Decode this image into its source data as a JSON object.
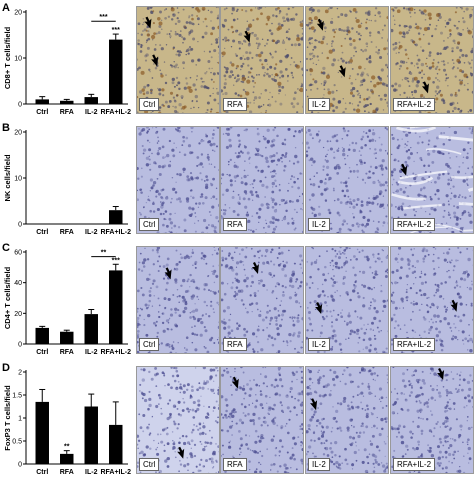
{
  "panels": [
    {
      "letter": "A",
      "ylabel": "CD8+ T cells/field",
      "chart": {
        "type": "bar",
        "categories": [
          "Ctrl",
          "RFA",
          "IL-2",
          "RFA+IL-2"
        ],
        "values": [
          1.0,
          0.7,
          1.5,
          14.0
        ],
        "errors": [
          0.6,
          0.3,
          0.6,
          1.2
        ],
        "ylim": [
          0,
          20
        ],
        "yticks": [
          0,
          10,
          20
        ],
        "annotations": [
          {
            "text": "***",
            "type": "bracket",
            "from": 2,
            "to": 3,
            "y": 18
          },
          {
            "text": "***",
            "type": "above",
            "index": 3
          }
        ]
      },
      "images": [
        {
          "label": "Ctrl",
          "stain": "dab",
          "arrows": [
            [
              0.24,
              0.55
            ],
            [
              0.16,
              0.2
            ]
          ]
        },
        {
          "label": "RFA",
          "stain": "dab",
          "arrows": [
            [
              0.34,
              0.33
            ]
          ]
        },
        {
          "label": "IL-2",
          "stain": "dab",
          "arrows": [
            [
              0.2,
              0.22
            ],
            [
              0.46,
              0.65
            ]
          ]
        },
        {
          "label": "RFA+IL-2",
          "stain": "dab",
          "arrows": [
            [
              0.44,
              0.8
            ]
          ]
        }
      ]
    },
    {
      "letter": "B",
      "ylabel": "NK cells/field",
      "chart": {
        "type": "bar",
        "categories": [
          "Ctrl",
          "RFA",
          "IL-2",
          "RFA+IL-2"
        ],
        "values": [
          0,
          0,
          0,
          3.0
        ],
        "errors": [
          0,
          0,
          0,
          0.8
        ],
        "ylim": [
          0,
          20
        ],
        "yticks": [
          0,
          10,
          20
        ],
        "annotations": []
      },
      "images": [
        {
          "label": "Ctrl",
          "stain": "blue",
          "arrows": []
        },
        {
          "label": "RFA",
          "stain": "blue",
          "arrows": []
        },
        {
          "label": "IL-2",
          "stain": "blue",
          "arrows": []
        },
        {
          "label": "RFA+IL-2",
          "stain": "blue-fiber",
          "arrows": [
            [
              0.18,
              0.45
            ]
          ]
        }
      ]
    },
    {
      "letter": "C",
      "ylabel": "CD4+ T cells/field",
      "chart": {
        "type": "bar",
        "categories": [
          "Ctrl",
          "RFA",
          "IL-2",
          "RFA+IL-2"
        ],
        "values": [
          10.5,
          8.0,
          19.5,
          48.0
        ],
        "errors": [
          1.0,
          1.0,
          3.0,
          4.0
        ],
        "ylim": [
          0,
          60
        ],
        "yticks": [
          0,
          20,
          40,
          60
        ],
        "annotations": [
          {
            "text": "**",
            "type": "bracket",
            "from": 2,
            "to": 3,
            "y": 57
          },
          {
            "text": "***",
            "type": "above",
            "index": 3
          }
        ]
      },
      "images": [
        {
          "label": "Ctrl",
          "stain": "blue",
          "arrows": [
            [
              0.4,
              0.3
            ]
          ]
        },
        {
          "label": "RFA",
          "stain": "blue",
          "arrows": [
            [
              0.44,
              0.25
            ]
          ]
        },
        {
          "label": "IL-2",
          "stain": "blue",
          "arrows": [
            [
              0.18,
              0.62
            ]
          ]
        },
        {
          "label": "RFA+IL-2",
          "stain": "blue",
          "arrows": [
            [
              0.78,
              0.6
            ]
          ]
        }
      ]
    },
    {
      "letter": "D",
      "ylabel": "FoxP3 T cells/field",
      "chart": {
        "type": "bar",
        "categories": [
          "Ctrl",
          "RFA",
          "IL-2",
          "RFA+IL-2"
        ],
        "values": [
          1.35,
          0.22,
          1.25,
          0.85
        ],
        "errors": [
          0.27,
          0.07,
          0.27,
          0.5
        ],
        "ylim": [
          0,
          2.0
        ],
        "yticks": [
          0,
          0.5,
          1.0,
          1.5,
          2.0
        ],
        "annotations": [
          {
            "text": "**",
            "type": "above",
            "index": 1
          }
        ]
      },
      "images": [
        {
          "label": "Ctrl",
          "stain": "blue-light",
          "arrows": [
            [
              0.55,
              0.85
            ]
          ]
        },
        {
          "label": "RFA",
          "stain": "blue",
          "arrows": [
            [
              0.2,
              0.2
            ]
          ]
        },
        {
          "label": "IL-2",
          "stain": "blue",
          "arrows": [
            [
              0.12,
              0.4
            ]
          ]
        },
        {
          "label": "RFA+IL-2",
          "stain": "blue",
          "arrows": [
            [
              0.62,
              0.12
            ]
          ]
        }
      ]
    }
  ],
  "colors": {
    "dab_bg": "#c8b78a",
    "dab_cell": "#4b4a6b",
    "dab_brown": "#8a5a26",
    "blue_bg": "#b9bde0",
    "blue_cell": "#4d4f92",
    "blue_light_bg": "#cfd3ec"
  }
}
